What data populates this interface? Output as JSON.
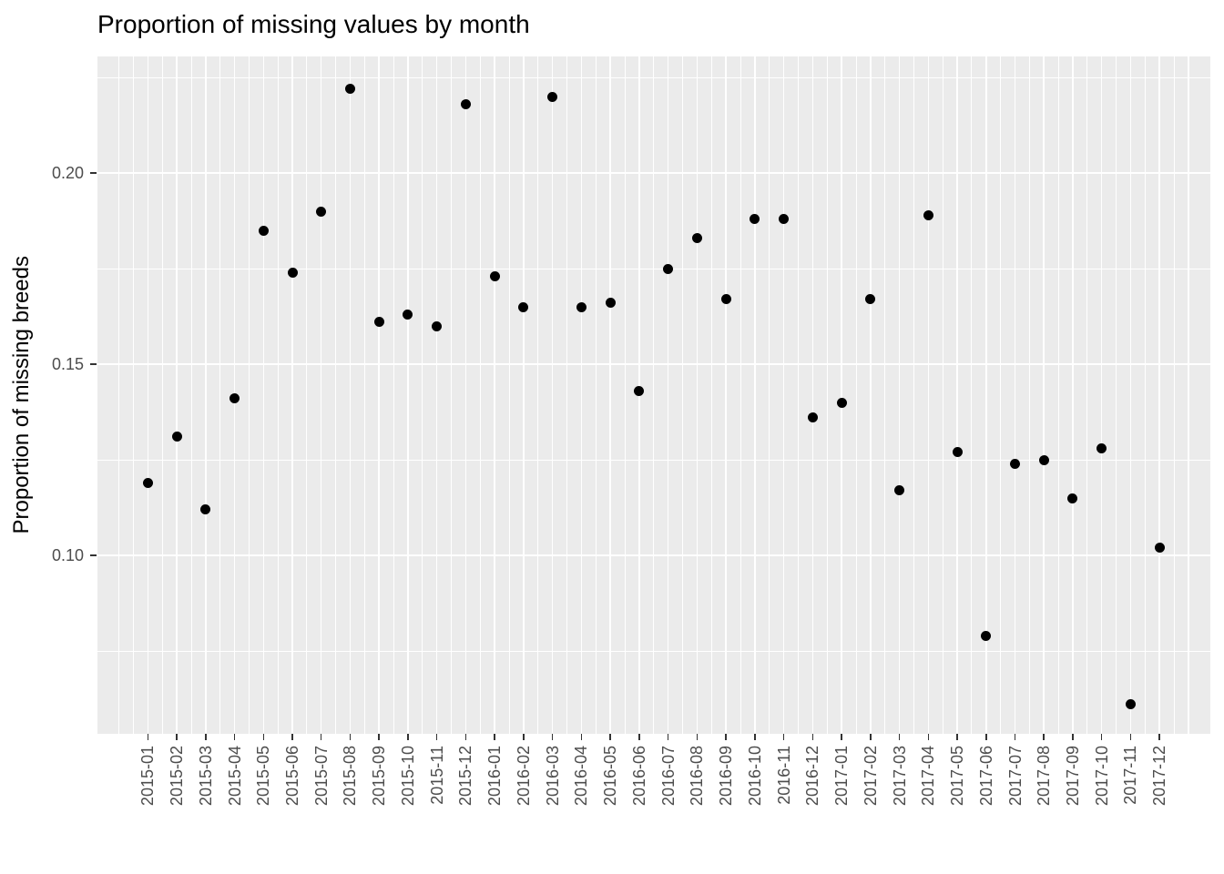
{
  "title": "Proportion of missing values by month",
  "y_axis": {
    "label": "Proportion of missing breeds",
    "tick_labels": [
      "0.20",
      "0.15",
      "0.10"
    ]
  },
  "x_axis": {
    "label": "",
    "tick_labels": [
      "2015-01",
      "2015-02",
      "2015-03",
      "2015-04",
      "2015-05",
      "2015-06",
      "2015-07",
      "2015-08",
      "2015-09",
      "2015-10",
      "2015-11",
      "2015-12",
      "2016-01",
      "2016-02",
      "2016-03",
      "2016-04",
      "2016-05",
      "2016-06",
      "2016-07",
      "2016-08",
      "2016-09",
      "2016-10",
      "2016-11",
      "2016-12",
      "2017-01",
      "2017-02",
      "2017-03",
      "2017-04",
      "2017-05",
      "2017-06",
      "2017-07",
      "2017-08",
      "2017-09",
      "2017-10",
      "2017-11",
      "2017-12"
    ]
  },
  "colors": {
    "panel_background": "#EBEBEB",
    "gridline": "#FFFFFF",
    "point": "#000000",
    "axis_text": "#4D4D4D",
    "tick_mark": "#333333",
    "title_text": "#000000"
  },
  "chart_data": {
    "type": "scatter",
    "title": "Proportion of missing values by month",
    "xlabel": "",
    "ylabel": "Proportion of missing breeds",
    "x": [
      "2015-01",
      "2015-02",
      "2015-03",
      "2015-04",
      "2015-05",
      "2015-06",
      "2015-07",
      "2015-08",
      "2015-09",
      "2015-10",
      "2015-11",
      "2015-12",
      "2016-01",
      "2016-02",
      "2016-03",
      "2016-04",
      "2016-05",
      "2016-06",
      "2016-07",
      "2016-08",
      "2016-09",
      "2016-10",
      "2016-11",
      "2016-12",
      "2017-01",
      "2017-02",
      "2017-03",
      "2017-04",
      "2017-05",
      "2017-06",
      "2017-07",
      "2017-08",
      "2017-09",
      "2017-10",
      "2017-11",
      "2017-12"
    ],
    "values": [
      0.119,
      0.131,
      0.112,
      0.141,
      0.185,
      0.174,
      0.19,
      0.222,
      0.161,
      0.163,
      0.16,
      0.218,
      0.173,
      0.165,
      0.22,
      0.165,
      0.166,
      0.143,
      0.175,
      0.183,
      0.167,
      0.188,
      0.188,
      0.136,
      0.14,
      0.167,
      0.117,
      0.189,
      0.127,
      0.079,
      0.124,
      0.125,
      0.115,
      0.128,
      0.061,
      0.102
    ],
    "y_ticks": [
      0.1,
      0.15,
      0.2
    ],
    "y_tick_labels": [
      "0.10",
      "0.15",
      "0.20"
    ],
    "y_minor_gridlines": [
      0.075,
      0.125,
      0.175,
      0.225
    ],
    "ylim": [
      0.053,
      0.231
    ],
    "grid": true,
    "legend": false
  }
}
